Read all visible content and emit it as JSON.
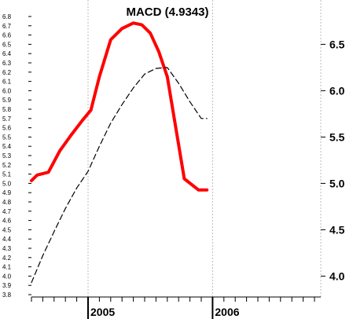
{
  "chart_data": {
    "type": "line",
    "title": "MACD (4.9343)",
    "xlabel": "",
    "ylabel": "",
    "x_tick_labels": [
      "2005",
      "2006"
    ],
    "x_range": [
      0,
      32
    ],
    "x_year_positions": {
      "2005": 10,
      "2006": 32
    },
    "x_month_ticks": [
      0,
      2,
      4,
      6,
      8,
      10,
      12,
      14,
      16,
      18,
      20,
      22,
      24,
      26,
      28,
      30,
      32,
      34,
      36,
      38,
      40,
      42,
      44,
      46,
      48,
      50,
      52
    ],
    "left_axis": {
      "range": [
        3.8,
        6.8
      ],
      "ticks": [
        "3.8",
        "3.9",
        "4.0",
        "4.1",
        "4.2",
        "4.3",
        "4.4",
        "4.5",
        "4.6",
        "4.7",
        "4.8",
        "4.9",
        "5.0",
        "5.1",
        "5.2",
        "5.3",
        "5.4",
        "5.5",
        "5.6",
        "5.7",
        "5.8",
        "5.9",
        "6.0",
        "6.1",
        "6.2",
        "6.3",
        "6.4",
        "6.5",
        "6.6",
        "6.7",
        "6.8"
      ]
    },
    "right_axis": {
      "range": [
        3.8,
        6.8
      ],
      "ticks": [
        "4.0",
        "4.5",
        "5.0",
        "5.5",
        "6.0",
        "6.5"
      ]
    },
    "grid": false,
    "series": [
      {
        "color": "#ff0000",
        "style": "solid-thick",
        "x": [
          0,
          1,
          3,
          5,
          7,
          9,
          10.5,
          12,
          14,
          16,
          18,
          19.5,
          21,
          22.5,
          24,
          25.5,
          27,
          29.5,
          31
        ],
        "y": [
          5.03,
          5.09,
          5.12,
          5.35,
          5.52,
          5.68,
          5.79,
          6.15,
          6.55,
          6.67,
          6.73,
          6.71,
          6.62,
          6.42,
          6.15,
          5.6,
          5.05,
          4.93,
          4.93
        ]
      },
      {
        "color": "#000000",
        "style": "dashed",
        "x": [
          0,
          2,
          4,
          6,
          8,
          10,
          12,
          14,
          16,
          18,
          20,
          22,
          24,
          26,
          28,
          30,
          31
        ],
        "y": [
          3.93,
          4.22,
          4.48,
          4.73,
          4.95,
          5.13,
          5.4,
          5.65,
          5.85,
          6.03,
          6.18,
          6.24,
          6.25,
          6.08,
          5.88,
          5.7,
          5.7
        ]
      }
    ]
  }
}
